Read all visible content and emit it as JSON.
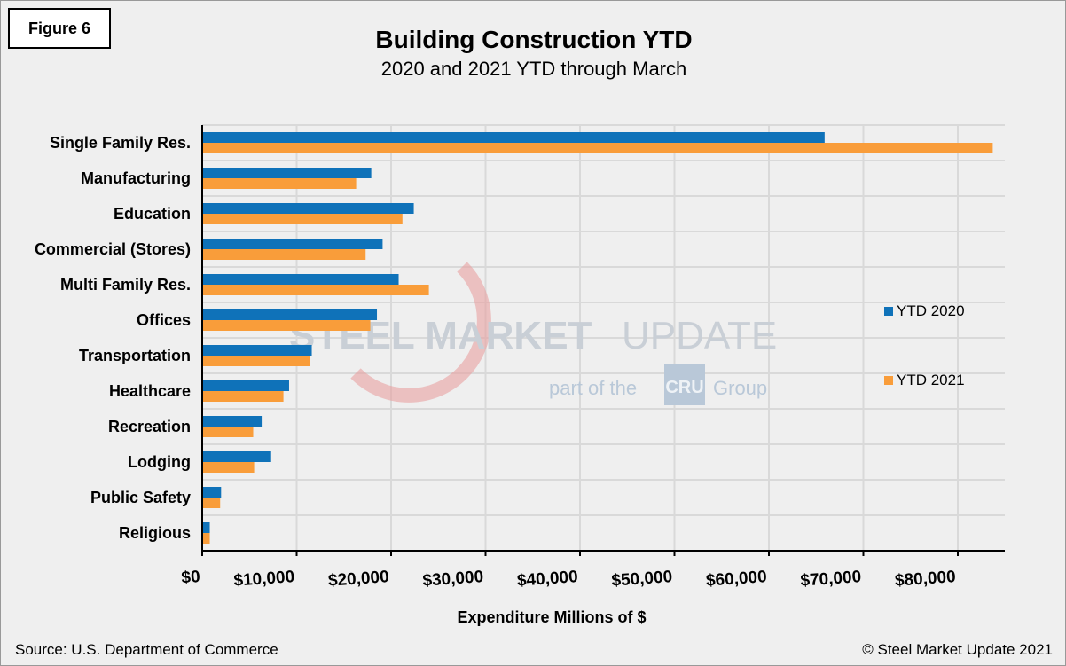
{
  "figure_label": "Figure 6",
  "source": "Source: U.S. Department of Commerce",
  "copyright": "© Steel Market Update 2021",
  "watermark": {
    "line1a": "STEEL",
    "line1b": "MARKET",
    "line1c": "UPDATE",
    "line2": "part of the",
    "logo": "CRU",
    "line2b": "Group"
  },
  "chart_data": {
    "type": "bar",
    "orientation": "horizontal",
    "title": "Building Construction YTD",
    "subtitle": "2020 and 2021 YTD through March",
    "xlabel": "Expenditure Millions of $",
    "ylabel": "",
    "xlim": [
      0,
      85000
    ],
    "xticks": [
      0,
      10000,
      20000,
      30000,
      40000,
      50000,
      60000,
      70000,
      80000
    ],
    "xtick_labels": [
      "$0",
      "$10,000",
      "$20,000",
      "$30,000",
      "$40,000",
      "$50,000",
      "$60,000",
      "$70,000",
      "$80,000"
    ],
    "grid": true,
    "legend_placement": "right",
    "categories": [
      "Single Family Res.",
      "Manufacturing",
      "Education",
      "Commercial (Stores)",
      "Multi Family Res.",
      "Offices",
      "Transportation",
      "Healthcare",
      "Recreation",
      "Lodging",
      "Public Safety",
      "Religious"
    ],
    "series": [
      {
        "name": "YTD 2020",
        "color": "#0f72b9",
        "values": [
          65900,
          17900,
          22400,
          19100,
          20800,
          18500,
          11600,
          9200,
          6300,
          7300,
          2000,
          800
        ]
      },
      {
        "name": "YTD 2021",
        "color": "#f99d3a",
        "values": [
          83700,
          16300,
          21200,
          17300,
          24000,
          17800,
          11400,
          8600,
          5400,
          5500,
          1900,
          800
        ]
      }
    ]
  }
}
